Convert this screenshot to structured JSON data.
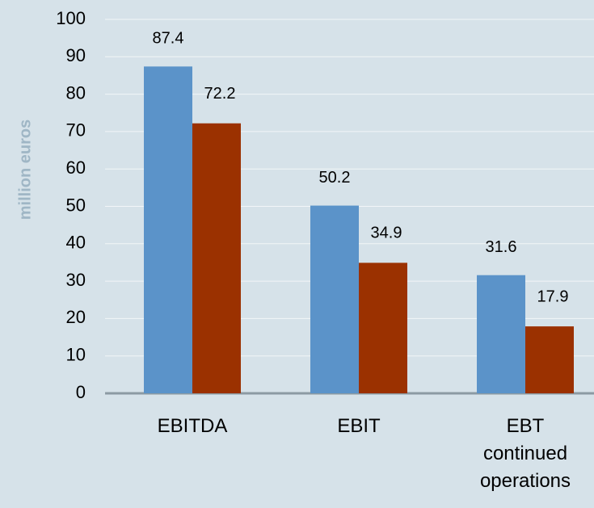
{
  "chart_data": {
    "type": "bar",
    "y_label": "million euros",
    "categories": [
      "EBITDA",
      "EBIT",
      "EBT continued operations"
    ],
    "series": [
      {
        "color": "#5b93c9",
        "values": [
          87.4,
          50.2,
          31.6
        ]
      },
      {
        "color": "#9b3100",
        "values": [
          72.2,
          34.9,
          17.9
        ]
      }
    ],
    "ylim": [
      0,
      100
    ],
    "yticks": [
      0,
      10,
      20,
      30,
      40,
      50,
      60,
      70,
      80,
      90,
      100
    ],
    "grid": true
  }
}
